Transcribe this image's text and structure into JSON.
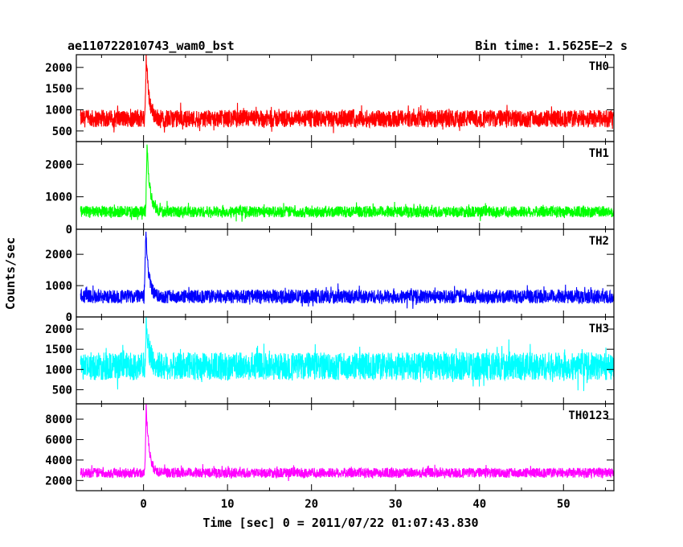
{
  "chart_data": {
    "type": "line",
    "title_left": "ae110722010743_wam0_bst",
    "title_right": "Bin time: 1.5625E−2 s",
    "xlabel": "Time [sec] 0 = 2011/07/22 01:07:43.830",
    "ylabel": "Counts/sec",
    "xlim": [
      -8,
      56
    ],
    "x_ticks": [
      0,
      10,
      20,
      30,
      40,
      50
    ],
    "x_data_range": [
      -7.5,
      56
    ],
    "bin_time_s": 0.015625,
    "grid": false,
    "panels": [
      {
        "name": "TH0",
        "color": "#ff0000",
        "ylim": [
          250,
          2300
        ],
        "y_ticks": [
          500,
          1000,
          1500,
          2000
        ],
        "baseline": 790,
        "noise": 180,
        "peak": {
          "x": 0.3,
          "value": 2300
        }
      },
      {
        "name": "TH1",
        "color": "#00ff00",
        "ylim": [
          0,
          2700
        ],
        "y_ticks": [
          0,
          1000,
          2000
        ],
        "baseline": 540,
        "noise": 150,
        "peak": {
          "x": 0.4,
          "value": 2650
        }
      },
      {
        "name": "TH2",
        "color": "#0000ff",
        "ylim": [
          0,
          2800
        ],
        "y_ticks": [
          0,
          1000,
          2000
        ],
        "baseline": 650,
        "noise": 190,
        "peak": {
          "x": 0.25,
          "value": 2800
        }
      },
      {
        "name": "TH3",
        "color": "#00ffff",
        "ylim": [
          150,
          2300
        ],
        "y_ticks": [
          500,
          1000,
          1500,
          2000
        ],
        "baseline": 1080,
        "noise": 300,
        "peak": {
          "x": 0.3,
          "value": 2300
        }
      },
      {
        "name": "TH0123",
        "color": "#ff00ff",
        "ylim": [
          1000,
          9500
        ],
        "y_ticks": [
          2000,
          4000,
          6000,
          8000
        ],
        "baseline": 2750,
        "noise": 420,
        "peak": {
          "x": 0.3,
          "value": 9500
        }
      }
    ]
  }
}
